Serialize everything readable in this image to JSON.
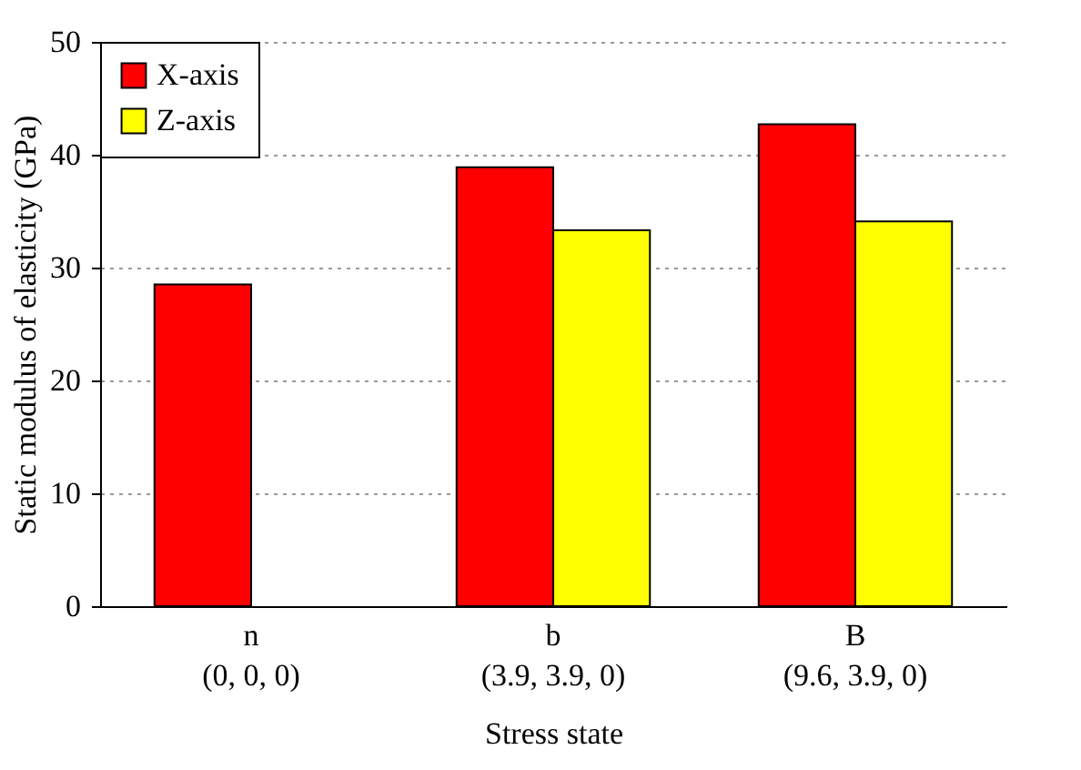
{
  "chart_data": {
    "type": "bar",
    "xlabel": "Stress state",
    "ylabel": "Static modulus of elasticity (GPa)",
    "categories": [
      "n\n(0, 0, 0)",
      "b\n(3.9, 3.9, 0)",
      "B\n(9.6, 3.9, 0)"
    ],
    "series": [
      {
        "name": "X-axis",
        "color": "#ff0000",
        "values": [
          28.5,
          38.9,
          42.7
        ]
      },
      {
        "name": "Z-axis",
        "color": "#ffff00",
        "values": [
          null,
          33.3,
          34.1
        ]
      }
    ],
    "ylim": [
      0,
      50
    ],
    "yticks": [
      0,
      10,
      20,
      30,
      40,
      50
    ],
    "grid": "y",
    "legend": "top left"
  }
}
